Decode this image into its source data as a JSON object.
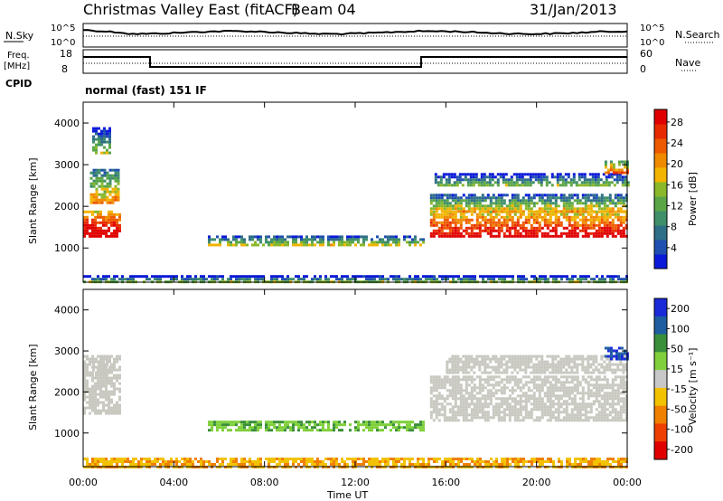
{
  "header": {
    "station": "Christmas Valley East (fitACF)",
    "beam": "Beam 04",
    "date": "31/Jan/2013"
  },
  "panels": {
    "nsky": {
      "left_label": "N.Sky",
      "right_label": "N.Search",
      "left_ticks": [
        "10^5",
        "10^0"
      ],
      "right_ticks": [
        "10^5",
        "10^0"
      ]
    },
    "freq": {
      "left_label_1": "Freq.",
      "left_label_2": "[MHz]",
      "left_ticks": [
        "18",
        "8"
      ],
      "right_ticks": [
        "60",
        "0"
      ],
      "right_label": "Nave"
    },
    "cpid": {
      "label": "CPID",
      "text": "normal (fast) 151 IF"
    }
  },
  "chart_data": [
    {
      "type": "heatmap",
      "parameter": "Power",
      "xlabel": "Time UT",
      "ylabel": "Slant Range [km]",
      "x_ticks": [
        "00:00",
        "04:00",
        "08:00",
        "12:00",
        "16:00",
        "20:00",
        "00:00"
      ],
      "xlim_hours": [
        0,
        24
      ],
      "y_ticks": [
        1000,
        2000,
        3000,
        4000
      ],
      "ylim": [
        180,
        4500
      ],
      "colorbar_label": "Power [dB]",
      "colorbar_ticks": [
        "4",
        "8",
        "12",
        "16",
        "20",
        "24",
        "28"
      ],
      "colorbar_range": [
        0,
        30
      ],
      "colorbar_colors": [
        "#0b1ad8",
        "#1f4fb0",
        "#2e6e86",
        "#3f8f6a",
        "#5aa646",
        "#8ab82a",
        "#f2b400",
        "#f08a00",
        "#ee5a00",
        "#e82a00",
        "#e00000"
      ],
      "echo_bands": [
        {
          "t": [
            0.0,
            1.6
          ],
          "range": [
            1300,
            1900
          ],
          "power": 26
        },
        {
          "t": [
            0.3,
            1.5
          ],
          "range": [
            2100,
            2900
          ],
          "power": 14
        },
        {
          "t": [
            0.4,
            1.2
          ],
          "range": [
            3300,
            3900
          ],
          "power": 8
        },
        {
          "t": [
            5.5,
            15.0
          ],
          "range": [
            1050,
            1300
          ],
          "power": 12
        },
        {
          "t": [
            15.3,
            24.0
          ],
          "range": [
            1250,
            1900
          ],
          "power": 24
        },
        {
          "t": [
            15.3,
            24.0
          ],
          "range": [
            1900,
            2300
          ],
          "power": 12
        },
        {
          "t": [
            15.5,
            24.0
          ],
          "range": [
            2500,
            2800
          ],
          "power": 8
        },
        {
          "t": [
            23.0,
            24.0
          ],
          "range": [
            2800,
            3100
          ],
          "power": 18
        },
        {
          "t": [
            0.0,
            24.0
          ],
          "range": [
            200,
            350
          ],
          "power": 8
        }
      ]
    },
    {
      "type": "heatmap",
      "parameter": "Velocity",
      "xlabel": "Time UT",
      "ylabel": "Slant Range [km]",
      "x_ticks": [
        "00:00",
        "04:00",
        "08:00",
        "12:00",
        "16:00",
        "20:00",
        "00:00"
      ],
      "xlim_hours": [
        0,
        24
      ],
      "y_ticks": [
        1000,
        2000,
        3000,
        4000
      ],
      "ylim": [
        180,
        4500
      ],
      "colorbar_label": "Velocity [m s⁻¹]",
      "colorbar_ticks": [
        "200",
        "100",
        "50",
        "15",
        "-15",
        "-50",
        "-100",
        "-200"
      ],
      "colorbar_colors": [
        "#1a2ad8",
        "#1e5ea0",
        "#3a8f3a",
        "#7fd03a",
        "#c8c8c8",
        "#f2c200",
        "#f08000",
        "#ee4000",
        "#e00000"
      ],
      "ground_scatter_color": "#c8c8c0",
      "echo_bands": [
        {
          "t": [
            0.0,
            1.6
          ],
          "range": [
            1500,
            2900
          ],
          "velocity": 0
        },
        {
          "t": [
            0.4,
            1.2
          ],
          "range": [
            2400,
            2900
          ],
          "velocity": 0
        },
        {
          "t": [
            5.5,
            15.0
          ],
          "range": [
            1050,
            1300
          ],
          "velocity": 30
        },
        {
          "t": [
            15.3,
            24.0
          ],
          "range": [
            1300,
            2400
          ],
          "velocity": 0
        },
        {
          "t": [
            16.0,
            24.0
          ],
          "range": [
            2500,
            2900
          ],
          "velocity": 0
        },
        {
          "t": [
            23.0,
            24.0
          ],
          "range": [
            2800,
            3100
          ],
          "velocity": 200
        },
        {
          "t": [
            0.0,
            24.0
          ],
          "range": [
            200,
            400
          ],
          "velocity": -30
        }
      ]
    }
  ]
}
